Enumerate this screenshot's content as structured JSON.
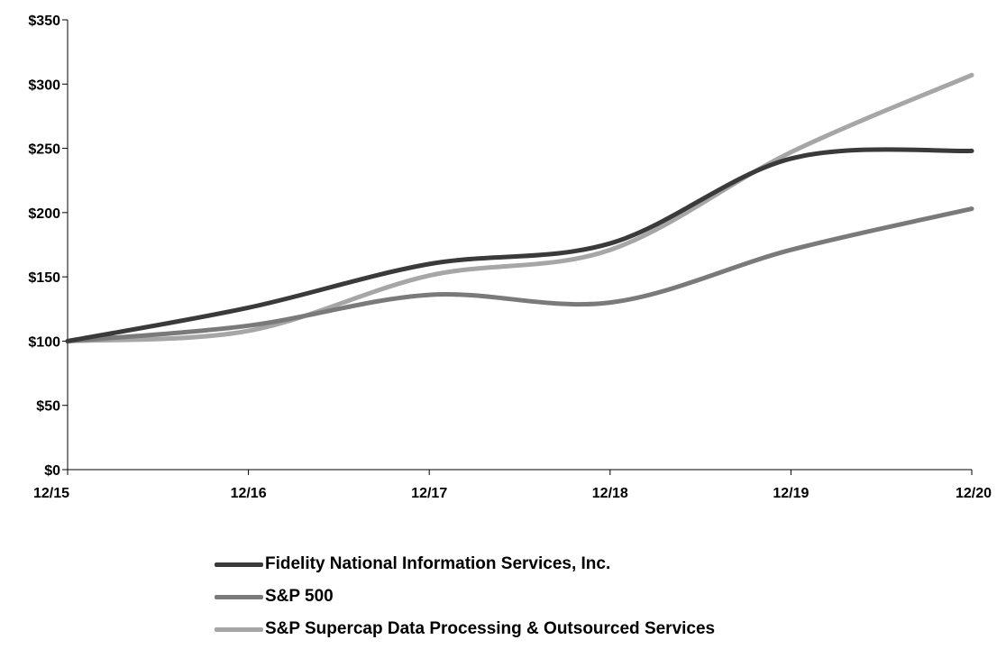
{
  "chart_data": {
    "type": "line",
    "x": [
      "12/15",
      "12/16",
      "12/17",
      "12/18",
      "12/19",
      "12/20"
    ],
    "ylim": [
      0,
      350
    ],
    "yticks": [
      0,
      50,
      100,
      150,
      200,
      250,
      300,
      350
    ],
    "ytick_labels": [
      "$0",
      "$50",
      "$100",
      "$150",
      "$200",
      "$250",
      "$300",
      "$350"
    ],
    "grid": false,
    "legend_position": "bottom",
    "series": [
      {
        "name": "Fidelity National Information Services, Inc.",
        "color": "#3a3a3a",
        "values": [
          100,
          126,
          160,
          176,
          242,
          248
        ]
      },
      {
        "name": "S&P 500",
        "color": "#7a7a7a",
        "values": [
          100,
          112,
          136,
          130,
          171,
          203
        ]
      },
      {
        "name": "S&P Supercap Data Processing & Outsourced Services",
        "color": "#a6a6a6",
        "values": [
          100,
          108,
          151,
          171,
          247,
          307
        ]
      }
    ]
  }
}
